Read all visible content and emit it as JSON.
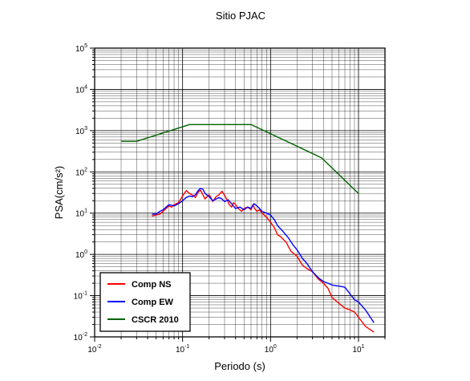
{
  "chart_data": {
    "type": "line",
    "title": "Sitio PJAC",
    "xlabel": "Periodo (s)",
    "ylabel": "PSA(cm/s²)",
    "xscale": "log",
    "yscale": "log",
    "xlim": [
      0.01,
      20
    ],
    "ylim": [
      0.01,
      100000
    ],
    "grid": true,
    "legend_position": "bottom-left",
    "x_tick_labels": [
      {
        "base": "10",
        "exp": "-2"
      },
      {
        "base": "10",
        "exp": "-1"
      },
      {
        "base": "10",
        "exp": "0"
      },
      {
        "base": "10",
        "exp": "1"
      }
    ],
    "y_tick_labels": [
      {
        "base": "10",
        "exp": "-2"
      },
      {
        "base": "10",
        "exp": "-1"
      },
      {
        "base": "10",
        "exp": "0"
      },
      {
        "base": "10",
        "exp": "1"
      },
      {
        "base": "10",
        "exp": "2"
      },
      {
        "base": "10",
        "exp": "3"
      },
      {
        "base": "10",
        "exp": "4"
      },
      {
        "base": "10",
        "exp": "5"
      }
    ],
    "series": [
      {
        "name": "Comp NS",
        "color": "#ff0000",
        "points": [
          [
            0.045,
            8.5
          ],
          [
            0.05,
            9
          ],
          [
            0.055,
            9.5
          ],
          [
            0.06,
            11
          ],
          [
            0.065,
            13
          ],
          [
            0.07,
            15
          ],
          [
            0.075,
            14
          ],
          [
            0.08,
            16
          ],
          [
            0.09,
            18
          ],
          [
            0.1,
            26
          ],
          [
            0.11,
            35
          ],
          [
            0.12,
            30
          ],
          [
            0.13,
            27
          ],
          [
            0.14,
            24
          ],
          [
            0.15,
            32
          ],
          [
            0.16,
            36
          ],
          [
            0.17,
            28
          ],
          [
            0.18,
            22
          ],
          [
            0.19,
            25
          ],
          [
            0.2,
            28
          ],
          [
            0.21,
            24
          ],
          [
            0.22,
            19
          ],
          [
            0.24,
            25
          ],
          [
            0.26,
            28
          ],
          [
            0.28,
            34
          ],
          [
            0.3,
            27
          ],
          [
            0.32,
            21
          ],
          [
            0.34,
            16
          ],
          [
            0.36,
            14
          ],
          [
            0.38,
            18
          ],
          [
            0.4,
            16
          ],
          [
            0.43,
            13
          ],
          [
            0.47,
            11
          ],
          [
            0.5,
            13
          ],
          [
            0.55,
            14
          ],
          [
            0.6,
            12
          ],
          [
            0.63,
            16
          ],
          [
            0.66,
            13
          ],
          [
            0.7,
            11
          ],
          [
            0.75,
            12
          ],
          [
            0.8,
            10
          ],
          [
            0.9,
            8
          ],
          [
            1.0,
            6
          ],
          [
            1.1,
            4.5
          ],
          [
            1.2,
            3
          ],
          [
            1.3,
            2.7
          ],
          [
            1.5,
            2
          ],
          [
            1.7,
            1.2
          ],
          [
            2.0,
            0.9
          ],
          [
            2.3,
            0.55
          ],
          [
            2.6,
            0.45
          ],
          [
            3.0,
            0.38
          ],
          [
            3.5,
            0.25
          ],
          [
            4.0,
            0.2
          ],
          [
            4.5,
            0.15
          ],
          [
            5.0,
            0.09
          ],
          [
            6.0,
            0.065
          ],
          [
            7.0,
            0.05
          ],
          [
            8.0,
            0.045
          ],
          [
            9.0,
            0.04
          ],
          [
            10.0,
            0.03
          ],
          [
            12.0,
            0.018
          ],
          [
            15.0,
            0.013
          ]
        ]
      },
      {
        "name": "Comp EW",
        "color": "#0000ff",
        "points": [
          [
            0.045,
            9.5
          ],
          [
            0.05,
            9.5
          ],
          [
            0.055,
            11
          ],
          [
            0.06,
            12
          ],
          [
            0.065,
            14
          ],
          [
            0.07,
            16
          ],
          [
            0.08,
            15
          ],
          [
            0.09,
            17
          ],
          [
            0.1,
            20
          ],
          [
            0.11,
            24
          ],
          [
            0.12,
            26
          ],
          [
            0.13,
            25
          ],
          [
            0.14,
            28
          ],
          [
            0.15,
            35
          ],
          [
            0.16,
            40
          ],
          [
            0.17,
            38
          ],
          [
            0.18,
            30
          ],
          [
            0.2,
            25
          ],
          [
            0.22,
            20
          ],
          [
            0.24,
            22
          ],
          [
            0.26,
            24
          ],
          [
            0.28,
            22
          ],
          [
            0.3,
            19
          ],
          [
            0.33,
            21
          ],
          [
            0.36,
            17
          ],
          [
            0.4,
            13
          ],
          [
            0.45,
            14
          ],
          [
            0.5,
            12
          ],
          [
            0.55,
            14
          ],
          [
            0.6,
            13
          ],
          [
            0.65,
            17
          ],
          [
            0.7,
            15
          ],
          [
            0.75,
            13
          ],
          [
            0.8,
            11
          ],
          [
            0.9,
            10
          ],
          [
            1.0,
            9
          ],
          [
            1.1,
            7
          ],
          [
            1.2,
            5
          ],
          [
            1.4,
            3.5
          ],
          [
            1.6,
            2.5
          ],
          [
            1.8,
            1.7
          ],
          [
            2.0,
            1.3
          ],
          [
            2.3,
            0.8
          ],
          [
            2.6,
            0.6
          ],
          [
            3.0,
            0.38
          ],
          [
            3.5,
            0.27
          ],
          [
            4.0,
            0.22
          ],
          [
            4.5,
            0.2
          ],
          [
            5.0,
            0.18
          ],
          [
            6.0,
            0.17
          ],
          [
            7.0,
            0.16
          ],
          [
            8.0,
            0.11
          ],
          [
            9.0,
            0.08
          ],
          [
            10.0,
            0.07
          ],
          [
            12.0,
            0.045
          ],
          [
            15.0,
            0.022
          ]
        ]
      },
      {
        "name": "CSCR 2010",
        "color": "#006400",
        "points": [
          [
            0.02,
            550
          ],
          [
            0.03,
            550
          ],
          [
            0.12,
            1400
          ],
          [
            0.6,
            1400
          ],
          [
            3.8,
            220
          ],
          [
            10.0,
            30
          ]
        ]
      }
    ]
  }
}
